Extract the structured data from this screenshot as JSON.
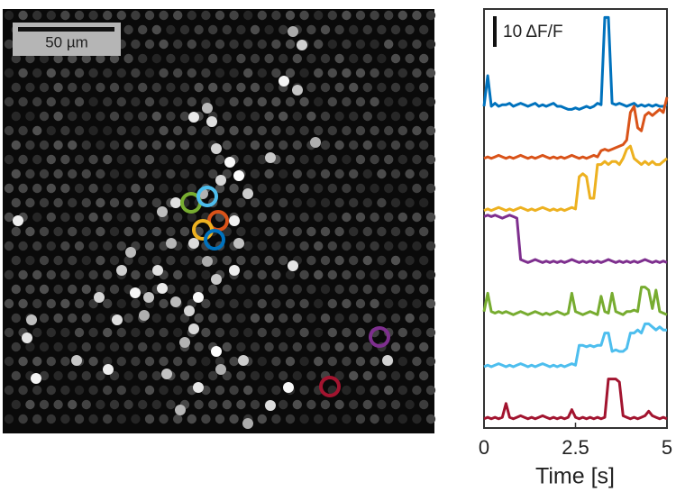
{
  "chart_data": {
    "type": "line",
    "image": {
      "scale_bar_label": "50 µm"
    },
    "scale_bar": {
      "value": 10,
      "label": "10 ΔF/F"
    },
    "xlabel": "Time [s]",
    "xlim": [
      0,
      5
    ],
    "xticks": [
      0,
      2.5,
      5
    ],
    "x": [
      0,
      0.1,
      0.2,
      0.3,
      0.4,
      0.5,
      0.6,
      0.7,
      0.8,
      0.9,
      1,
      1.1,
      1.2,
      1.3,
      1.4,
      1.5,
      1.6,
      1.7,
      1.8,
      1.9,
      2,
      2.1,
      2.2,
      2.3,
      2.4,
      2.5,
      2.6,
      2.7,
      2.8,
      2.9,
      3,
      3.1,
      3.2,
      3.3,
      3.4,
      3.5,
      3.6,
      3.7,
      3.8,
      3.9,
      4,
      4.1,
      4.2,
      4.3,
      4.4,
      4.5,
      4.6,
      4.7,
      4.8,
      4.9,
      5
    ],
    "series": [
      {
        "color": "#0072BD",
        "values": [
          0,
          10,
          0,
          1,
          0,
          0.5,
          0.5,
          1,
          0,
          0.5,
          1,
          0.5,
          0,
          0.5,
          1,
          0,
          0.5,
          0,
          0.5,
          1,
          0,
          0,
          -0.5,
          -1,
          -1,
          -0.5,
          -1,
          -0.5,
          0,
          -0.5,
          0,
          1,
          0.5,
          29,
          29,
          1,
          0.5,
          1,
          0.5,
          0,
          0.5,
          1,
          0,
          0.5,
          0,
          0.5,
          0,
          0.5,
          0,
          0,
          0.5
        ]
      },
      {
        "color": "#D95319",
        "values": [
          0,
          0.5,
          0,
          0.5,
          1,
          0.5,
          0,
          0.5,
          0,
          0.5,
          1,
          0.5,
          0,
          0.5,
          0,
          0.5,
          1,
          0.5,
          0,
          0.5,
          0,
          0.5,
          0,
          0.5,
          1,
          0.5,
          0,
          0.5,
          0,
          0.5,
          1,
          0.5,
          2.5,
          3,
          2.5,
          3,
          3.5,
          4,
          4.5,
          6,
          15,
          17,
          10,
          9,
          14,
          15,
          14,
          15,
          16,
          15,
          20
        ]
      },
      {
        "color": "#EDB120",
        "values": [
          0,
          0.5,
          0,
          0.5,
          1,
          0.5,
          0,
          0.5,
          0,
          0.5,
          1,
          0.5,
          0,
          0.5,
          0,
          0.5,
          1,
          0.5,
          0,
          0.5,
          0,
          0.5,
          0,
          0.5,
          1,
          0.5,
          11,
          12,
          11,
          4,
          4,
          15,
          15,
          16,
          15,
          16,
          16,
          15,
          17,
          20,
          21,
          17,
          16,
          15,
          16,
          15,
          16,
          15,
          15,
          16,
          17
        ]
      },
      {
        "color": "#7E2F8E",
        "values": [
          15,
          15.5,
          15,
          15.5,
          15,
          14.5,
          15,
          15.5,
          15,
          14.5,
          1,
          0.5,
          0,
          0.5,
          1,
          0.5,
          0,
          0.5,
          0,
          0.5,
          0,
          0.5,
          0,
          0.5,
          1,
          0.5,
          0,
          0.5,
          0,
          0.5,
          0,
          0.5,
          0,
          0.5,
          1,
          0.5,
          0,
          0.5,
          0,
          0.5,
          0,
          0.5,
          0,
          0.5,
          1,
          0.5,
          0,
          0.5,
          0,
          0.5,
          0
        ]
      },
      {
        "color": "#77AC30",
        "values": [
          1,
          7,
          1,
          0.5,
          1,
          0.5,
          1,
          0.5,
          0,
          0.5,
          1,
          0.5,
          0,
          0.5,
          1,
          0.5,
          0,
          0.5,
          0,
          0.5,
          1,
          0.5,
          0,
          0.5,
          7,
          1,
          0.5,
          0,
          0.5,
          1,
          0.5,
          0,
          6,
          1,
          0.5,
          7,
          1,
          0.5,
          0,
          1,
          1,
          1.5,
          1,
          9,
          9,
          8,
          2,
          8,
          1,
          0.5,
          0
        ]
      },
      {
        "color": "#4DBEEE",
        "values": [
          0,
          0.5,
          0,
          0.5,
          1,
          0.5,
          0,
          0.5,
          0,
          0.5,
          1,
          0.5,
          0,
          0.5,
          0,
          0.5,
          1,
          0.5,
          0,
          0.5,
          0,
          0.5,
          0,
          0.5,
          1,
          0.5,
          7,
          7,
          6.5,
          7,
          6.5,
          7,
          7,
          11,
          11,
          5,
          5.5,
          5,
          5,
          6,
          11,
          11,
          12,
          11,
          14,
          14,
          13,
          12,
          13,
          12,
          12
        ]
      },
      {
        "color": "#A2142F",
        "values": [
          0,
          0.5,
          0,
          0.5,
          0,
          0.5,
          5,
          0.5,
          0,
          0.5,
          1,
          0.5,
          0,
          0.5,
          0,
          0.5,
          1,
          0.5,
          0,
          0.5,
          0,
          0.5,
          0,
          0.5,
          3,
          0.5,
          0,
          0.5,
          0,
          0.5,
          0,
          0.5,
          0,
          0.5,
          13,
          13,
          13,
          12,
          1,
          0.5,
          0,
          0.5,
          0,
          0.5,
          1,
          2.5,
          1,
          0.5,
          0,
          0.5,
          0
        ]
      }
    ]
  }
}
